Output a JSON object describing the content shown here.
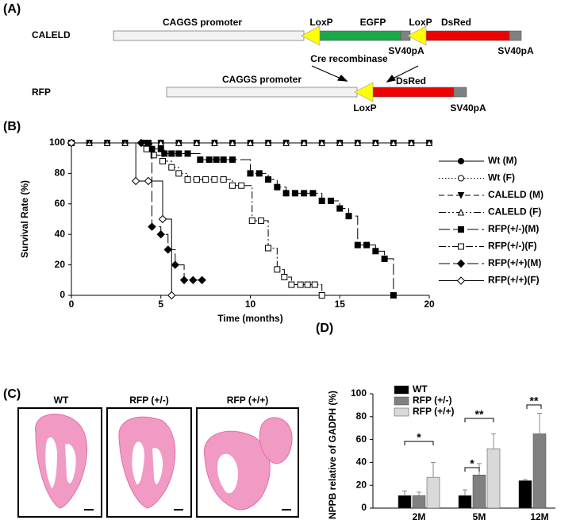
{
  "panel_a": {
    "label": "(A)",
    "caleld": {
      "name": "CALELD",
      "promoter": "CAGGS promoter",
      "loxp1": "LoxP",
      "egfp": "EGFP",
      "loxp2": "LoxP",
      "dsred": "DsRed",
      "sv40pa1": "SV40pA",
      "sv40pa2": "SV40pA"
    },
    "cre": "Cre recombinase",
    "rfp": {
      "name": "RFP",
      "promoter": "CAGGS promoter",
      "dsred": "DsRed",
      "loxp": "LoxP",
      "sv40pa": "SV40pA"
    }
  },
  "panel_b": {
    "label": "(B)"
  },
  "panel_c": {
    "label": "(C)",
    "images": [
      "WT",
      "RFP (+/-)",
      "RFP (+/+)"
    ]
  },
  "panel_d": {
    "label": "(D)"
  },
  "chart_data": [
    {
      "type": "line",
      "step": true,
      "x_label": "Time (months)",
      "y_label": "Survival Rate (%)",
      "xlim": [
        0,
        20
      ],
      "xticks": [
        0,
        5,
        10,
        15,
        20
      ],
      "ylim": [
        0,
        100
      ],
      "yticks": [
        0,
        20,
        40,
        60,
        80,
        100
      ],
      "series": [
        {
          "name": "Wt (M)",
          "color": "#000000",
          "marker": "circle",
          "filled": true,
          "dash": "solid",
          "x": [
            0,
            1,
            2,
            3,
            4,
            5,
            6,
            7,
            8,
            9,
            10,
            11,
            12,
            13,
            14,
            15,
            16,
            17,
            18,
            19,
            20
          ],
          "values": [
            100,
            100,
            100,
            100,
            100,
            100,
            100,
            100,
            100,
            100,
            100,
            100,
            100,
            100,
            100,
            100,
            100,
            100,
            100,
            100,
            100
          ]
        },
        {
          "name": "Wt (F)",
          "color": "#000000",
          "marker": "circle",
          "filled": false,
          "dash": "dotted",
          "x": [
            0,
            1,
            2,
            3,
            4,
            5,
            6,
            7,
            8,
            9,
            10,
            11,
            12,
            13,
            14,
            15,
            16,
            17,
            18,
            19,
            20
          ],
          "values": [
            100,
            100,
            100,
            100,
            100,
            100,
            100,
            100,
            100,
            100,
            100,
            100,
            100,
            100,
            100,
            100,
            100,
            100,
            100,
            100,
            100
          ]
        },
        {
          "name": "CALELD (M)",
          "color": "#000000",
          "marker": "triangle-down",
          "filled": true,
          "dash": "dashed",
          "x": [
            0,
            1,
            2,
            3,
            4,
            5,
            6,
            7,
            8,
            9,
            10,
            11,
            12,
            13,
            14,
            15,
            16,
            17,
            18,
            19,
            20
          ],
          "values": [
            100,
            100,
            100,
            100,
            100,
            100,
            100,
            100,
            100,
            100,
            100,
            100,
            100,
            100,
            100,
            100,
            100,
            100,
            100,
            100,
            100
          ]
        },
        {
          "name": "CALELD (F)",
          "color": "#000000",
          "marker": "triangle-up",
          "filled": false,
          "dash": "dash-dot-dot",
          "x": [
            0,
            1,
            2,
            3,
            4,
            5,
            6,
            7,
            8,
            9,
            10,
            11,
            12,
            13,
            14,
            15,
            16,
            17,
            18,
            19,
            20
          ],
          "values": [
            100,
            100,
            100,
            100,
            100,
            100,
            100,
            100,
            100,
            100,
            100,
            100,
            100,
            100,
            100,
            100,
            100,
            100,
            100,
            100,
            100
          ]
        },
        {
          "name": "RFP(+/-)(M)",
          "color": "#000000",
          "marker": "square",
          "filled": true,
          "dash": "long-dash",
          "x": [
            0,
            4.3,
            4.5,
            5,
            5.2,
            5.6,
            6,
            6.5,
            7.2,
            7.7,
            8.1,
            8.5,
            9,
            10,
            10.5,
            11,
            11.5,
            12,
            12.5,
            13,
            13.5,
            14,
            14.5,
            15,
            15.5,
            16,
            16.5,
            17,
            17.5,
            18
          ],
          "values": [
            100,
            100,
            96,
            96,
            93,
            93,
            93,
            93,
            89,
            89,
            89,
            89,
            89,
            80,
            80,
            76,
            71,
            67,
            67,
            67,
            67,
            62,
            62,
            57,
            52,
            33,
            33,
            29,
            24,
            0
          ]
        },
        {
          "name": "RFP(+/-)(F)",
          "color": "#000000",
          "marker": "square",
          "filled": false,
          "dash": "dash-dot",
          "x": [
            0,
            4.2,
            4.6,
            5.1,
            5.6,
            6,
            6.5,
            7,
            7.5,
            8,
            8.5,
            9,
            9.5,
            10.1,
            10.6,
            11,
            11.5,
            11.9,
            12.3,
            12.8,
            13.2,
            13.6,
            14
          ],
          "values": [
            100,
            96,
            92,
            88,
            84,
            80,
            76,
            76,
            76,
            76,
            76,
            72,
            72,
            49,
            49,
            31,
            17,
            12,
            7,
            7,
            7,
            7,
            0
          ]
        },
        {
          "name": "RFP(+/+)(M)",
          "color": "#000000",
          "marker": "diamond",
          "filled": true,
          "dash": "long-dash",
          "x": [
            0,
            3.9,
            4.5,
            5,
            5.4,
            5.8,
            6.3,
            6.8,
            7.3
          ],
          "values": [
            100,
            100,
            45,
            40,
            30,
            20,
            10,
            10,
            10
          ]
        },
        {
          "name": "RFP(+/+)(F)",
          "color": "#000000",
          "marker": "diamond",
          "filled": false,
          "dash": "solid",
          "x": [
            0,
            3.6,
            4.3,
            5.1,
            5.6
          ],
          "values": [
            100,
            75,
            75,
            50,
            0
          ]
        }
      ]
    },
    {
      "type": "bar",
      "y_label": "NPPB relative of GADPH (%)",
      "categories": [
        "2M",
        "5M",
        "12M"
      ],
      "ylim": [
        0,
        100
      ],
      "yticks": [
        0,
        20,
        40,
        60,
        80,
        100
      ],
      "series": [
        {
          "name": "WT",
          "color": "#000000",
          "values": [
            11,
            11,
            24
          ],
          "errors": [
            4,
            5,
            1
          ]
        },
        {
          "name": "RFP (+/-)",
          "color": "#808080",
          "values": [
            11,
            29,
            65
          ],
          "errors": [
            3,
            10,
            18
          ]
        },
        {
          "name": "RFP (+/+)",
          "color": "#d9d9d9",
          "values": [
            27,
            52,
            null
          ],
          "errors": [
            13,
            13,
            null
          ]
        }
      ],
      "annotations": [
        "*",
        "*",
        "**",
        "**"
      ]
    }
  ]
}
